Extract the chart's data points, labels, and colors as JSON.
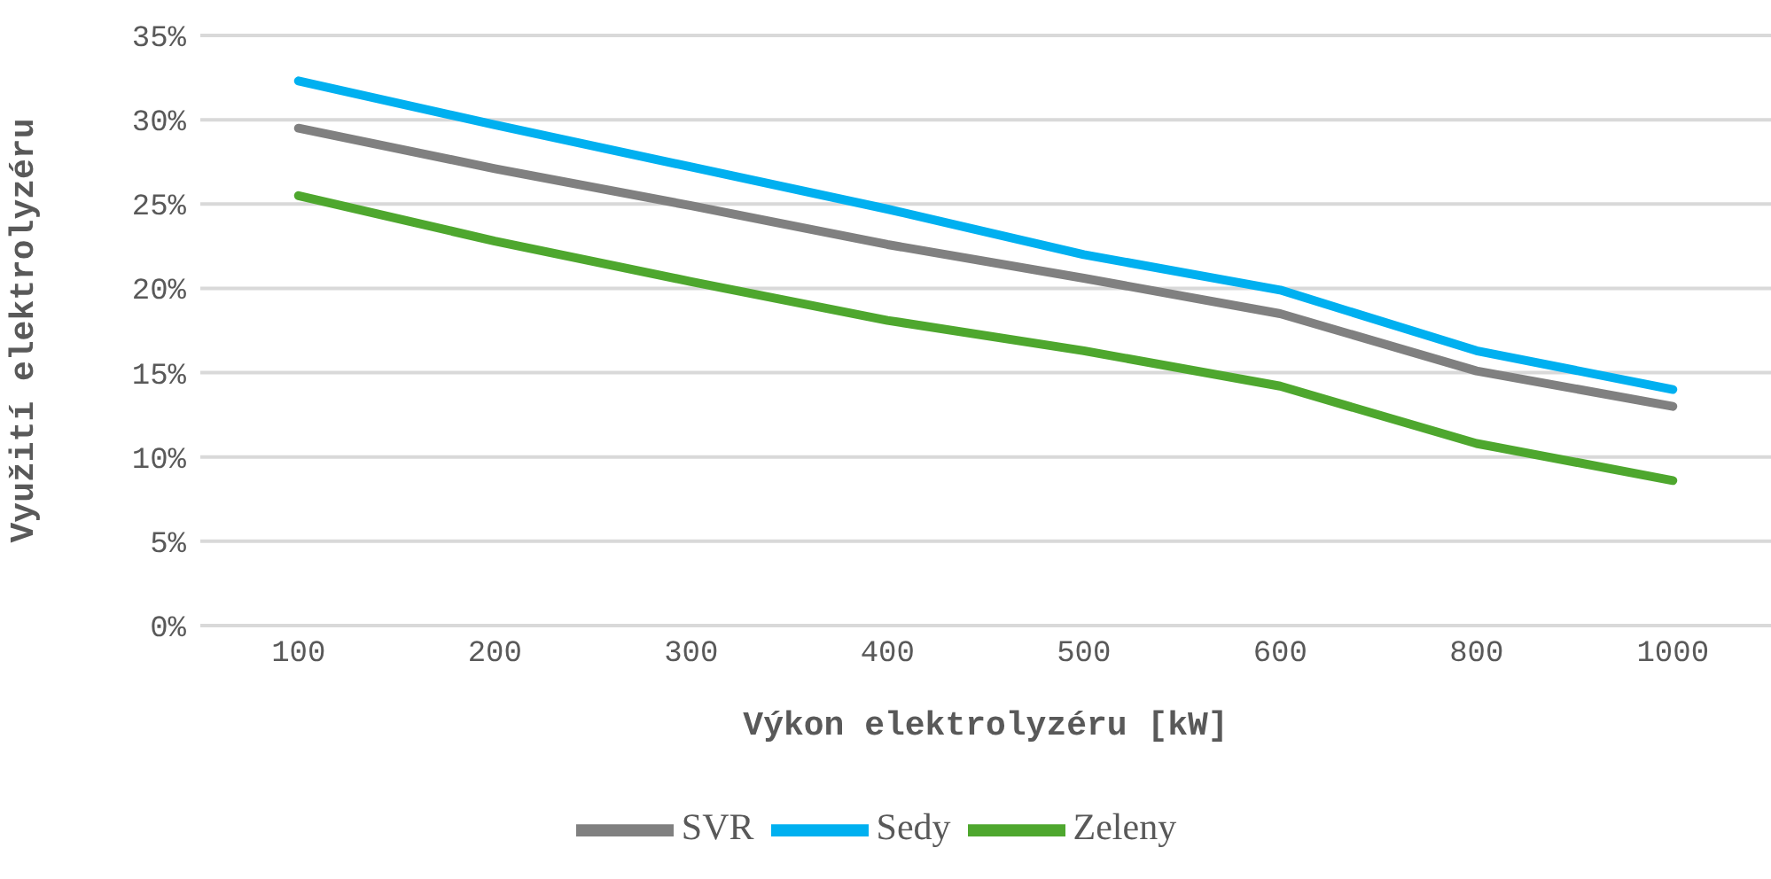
{
  "chart_data": {
    "type": "line",
    "xlabel": "Výkon elektrolyzéru [kW]",
    "ylabel": "Využití elektrolyzéru",
    "categories": [
      "100",
      "200",
      "300",
      "400",
      "500",
      "600",
      "800",
      "1000"
    ],
    "series": [
      {
        "name": "Zeleny",
        "color": "#4ea72e",
        "values": [
          25.5,
          22.8,
          20.4,
          18.1,
          16.3,
          14.2,
          10.8,
          8.6
        ]
      },
      {
        "name": "Sedy",
        "color": "#00b0f0",
        "values": [
          32.3,
          29.7,
          27.2,
          24.7,
          22.0,
          19.9,
          16.3,
          14.0
        ]
      },
      {
        "name": "SVR",
        "color": "#808080",
        "values": [
          29.5,
          27.1,
          24.9,
          22.6,
          20.6,
          18.5,
          15.1,
          13.0
        ]
      }
    ],
    "ylim": [
      0,
      35
    ],
    "yticks": [
      {
        "value": 0,
        "label": "0%"
      },
      {
        "value": 5,
        "label": "5%"
      },
      {
        "value": 10,
        "label": "10%"
      },
      {
        "value": 15,
        "label": "15%"
      },
      {
        "value": 20,
        "label": "20%"
      },
      {
        "value": 25,
        "label": "25%"
      },
      {
        "value": 30,
        "label": "30%"
      },
      {
        "value": 35,
        "label": "35%"
      }
    ],
    "grid": "y",
    "legend": "bottom",
    "marker": "none",
    "line_style": "solid"
  }
}
